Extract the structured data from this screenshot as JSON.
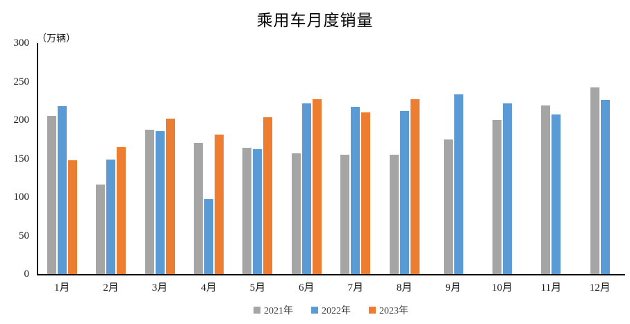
{
  "title": "乘用车月度销量",
  "unit_label": "（万辆）",
  "chart_data": {
    "type": "bar",
    "title": "乘用车月度销量",
    "ylabel": "（万辆）",
    "xlabel": "",
    "ylim": [
      0,
      300
    ],
    "ytick_step": 50,
    "grid": false,
    "legend_position": "bottom",
    "categories": [
      "1月",
      "2月",
      "3月",
      "4月",
      "5月",
      "6月",
      "7月",
      "8月",
      "9月",
      "10月",
      "11月",
      "12月"
    ],
    "series": [
      {
        "name": "2021年",
        "color": "#A5A5A5",
        "values": [
          205,
          116,
          187,
          170,
          164,
          157,
          155,
          155,
          175,
          200,
          219,
          242
        ]
      },
      {
        "name": "2022年",
        "color": "#5B9BD5",
        "values": [
          218,
          149,
          186,
          97,
          162,
          222,
          217,
          212,
          233,
          222,
          207,
          226
        ]
      },
      {
        "name": "2023年",
        "color": "#ED7D31",
        "values": [
          148,
          165,
          202,
          181,
          204,
          227,
          210,
          227,
          null,
          null,
          null,
          null
        ]
      }
    ]
  }
}
